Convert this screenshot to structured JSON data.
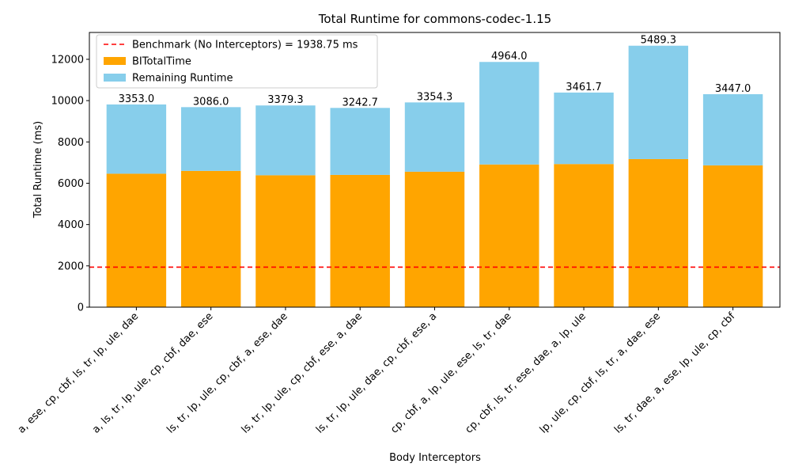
{
  "chart_data": {
    "type": "bar",
    "stacked": true,
    "title": "Total Runtime for commons-codec-1.15",
    "xlabel": "Body Interceptors",
    "ylabel": "Total Runtime (ms)",
    "ylim": [
      0,
      13300
    ],
    "yticks": [
      0,
      2000,
      4000,
      6000,
      8000,
      10000,
      12000
    ],
    "grid": false,
    "legend_position": "top-left",
    "categories": [
      "a, ese, cp, cbf, ls, tr, lp, ule, dae",
      "a, ls, tr, lp, ule, cp, cbf, dae, ese",
      "ls, tr, lp, ule, cp, cbf, a, ese, dae",
      "ls, tr, lp, ule, cp, cbf, ese, a, dae",
      "ls, tr, lp, ule, dae, cp, cbf, ese, a",
      "cp, cbf, a, lp, ule, ese, ls, tr, dae",
      "cp, cbf, ls, tr, ese, dae, a, lp, ule",
      "lp, ule, cp, cbf, ls, tr, a, dae, ese",
      "ls, tr, dae, a, ese, lp, ule, cp, cbf"
    ],
    "series": [
      {
        "name": "BITotalTime",
        "color": "#ffa500",
        "values": [
          6461.0,
          6598.0,
          6386.0,
          6404.0,
          6558.7,
          6908.7,
          6928.7,
          7168.7,
          6865.3
        ],
        "labels": [
          "6461.0",
          "6598.0",
          "6386.0",
          "6404.0",
          "6558.7",
          "6908.7",
          "6928.7",
          "7168.7",
          "6865.3"
        ]
      },
      {
        "name": "Remaining Runtime",
        "color": "#87ceeb",
        "values": [
          3353.0,
          3086.0,
          3379.3,
          3242.7,
          3354.3,
          4964.0,
          3461.7,
          5489.3,
          3447.0
        ],
        "labels": [
          "3353.0",
          "3086.0",
          "3379.3",
          "3242.7",
          "3354.3",
          "4964.0",
          "3461.7",
          "5489.3",
          "3447.0"
        ]
      }
    ],
    "benchmark": {
      "label": "Benchmark (No Interceptors) = 1938.75 ms",
      "value": 1938.75,
      "color": "#ff0000",
      "style": "dashed"
    }
  }
}
